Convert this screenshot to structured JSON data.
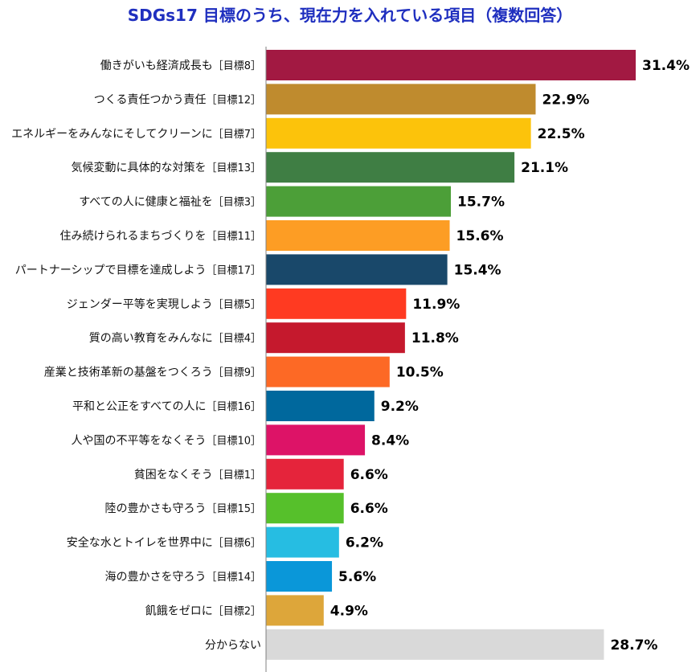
{
  "chart_data": {
    "type": "bar",
    "orientation": "horizontal",
    "title": "SDGs17 目標のうち、現在力を入れている項目（複数回答）",
    "value_suffix": "%",
    "xlim": [
      0,
      34
    ],
    "grid": false,
    "legend": "none",
    "bars": [
      {
        "label": "働きがいも経済成長も",
        "goal": "［目標8］",
        "value": 31.4,
        "display": "31.4%",
        "color": "#A21942"
      },
      {
        "label": "つくる責任つかう責任",
        "goal": "［目標12］",
        "value": 22.9,
        "display": "22.9%",
        "color": "#BF8B2E"
      },
      {
        "label": "エネルギーをみんなにそしてクリーンに",
        "goal": "［目標7］",
        "value": 22.5,
        "display": "22.5%",
        "color": "#FCC30B"
      },
      {
        "label": "気候変動に具体的な対策を",
        "goal": "［目標13］",
        "value": 21.1,
        "display": "21.1%",
        "color": "#3F7E44"
      },
      {
        "label": "すべての人に健康と福祉を",
        "goal": "［目標3］",
        "value": 15.7,
        "display": "15.7%",
        "color": "#4C9F38"
      },
      {
        "label": "住み続けられるまちづくりを",
        "goal": "［目標11］",
        "value": 15.6,
        "display": "15.6%",
        "color": "#FD9D24"
      },
      {
        "label": "パートナーシップで目標を達成しよう",
        "goal": "［目標17］",
        "value": 15.4,
        "display": "15.4%",
        "color": "#19486A"
      },
      {
        "label": "ジェンダー平等を実現しよう",
        "goal": "［目標5］",
        "value": 11.9,
        "display": "11.9%",
        "color": "#FF3A21"
      },
      {
        "label": "質の高い教育をみんなに",
        "goal": "［目標4］",
        "value": 11.8,
        "display": "11.8%",
        "color": "#C5192D"
      },
      {
        "label": "産業と技術革新の基盤をつくろう",
        "goal": "［目標9］",
        "value": 10.5,
        "display": "10.5%",
        "color": "#FD6925"
      },
      {
        "label": "平和と公正をすべての人に",
        "goal": "［目標16］",
        "value": 9.2,
        "display": "9.2%",
        "color": "#00689D"
      },
      {
        "label": "人や国の不平等をなくそう",
        "goal": "［目標10］",
        "value": 8.4,
        "display": "8.4%",
        "color": "#DD1367"
      },
      {
        "label": "貧困をなくそう",
        "goal": "［目標1］",
        "value": 6.6,
        "display": "6.6%",
        "color": "#E5243B"
      },
      {
        "label": "陸の豊かさも守ろう",
        "goal": "［目標15］",
        "value": 6.6,
        "display": "6.6%",
        "color": "#56C02B"
      },
      {
        "label": "安全な水とトイレを世界中に",
        "goal": "［目標6］",
        "value": 6.2,
        "display": "6.2%",
        "color": "#26BDE2"
      },
      {
        "label": "海の豊かさを守ろう",
        "goal": "［目標14］",
        "value": 5.6,
        "display": "5.6%",
        "color": "#0A97D9"
      },
      {
        "label": "飢餓をゼロに",
        "goal": "［目標2］",
        "value": 4.9,
        "display": "4.9%",
        "color": "#DDA63A"
      },
      {
        "label": "分からない",
        "goal": "",
        "value": 28.7,
        "display": "28.7%",
        "color": "#D9D9D9"
      }
    ]
  }
}
